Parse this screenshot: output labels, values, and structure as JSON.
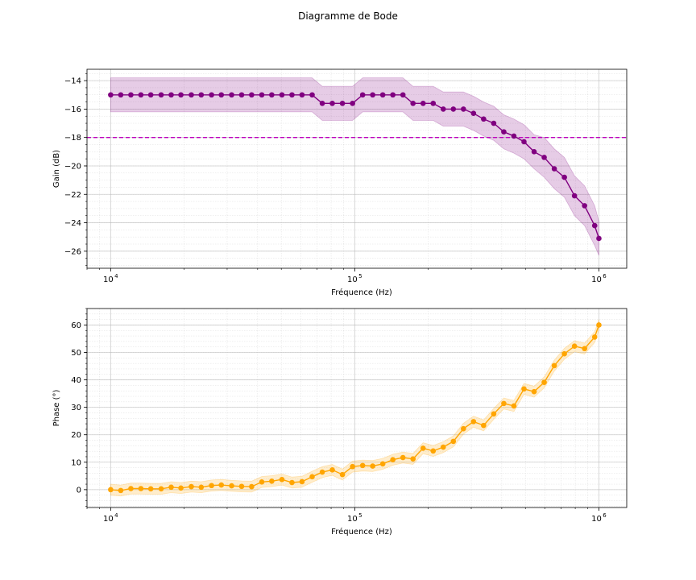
{
  "figure": {
    "title": "Diagramme de Bode"
  },
  "chart_data": [
    {
      "type": "line",
      "id": "gain",
      "title": "",
      "xlabel": "Fréquence (Hz)",
      "ylabel": "Gain (dB)",
      "xscale": "log",
      "xlim": [
        8000,
        1300000
      ],
      "ylim": [
        -27.2,
        -13.2
      ],
      "x_ticks": [
        10000,
        100000,
        1000000
      ],
      "x_tick_labels": [
        "10",
        "10",
        "10"
      ],
      "x_tick_exponents": [
        "4",
        "5",
        "6"
      ],
      "y_ticks": [
        -26,
        -24,
        -22,
        -20,
        -18,
        -16,
        -14
      ],
      "y_tick_labels": [
        "−26",
        "−24",
        "−22",
        "−20",
        "−18",
        "−16",
        "−14"
      ],
      "grid": true,
      "color": "#800080",
      "band_color": "#800080",
      "reference_line": {
        "y": -18,
        "color": "#bf00bf",
        "style": "dashed"
      },
      "x": [
        10000,
        11000,
        12100,
        13300,
        14600,
        16100,
        17700,
        19400,
        21400,
        23500,
        25900,
        28400,
        31300,
        34400,
        37800,
        41600,
        45700,
        50300,
        55300,
        60800,
        66900,
        73600,
        80900,
        89000,
        97900,
        107700,
        118400,
        130200,
        143200,
        157500,
        173200,
        190500,
        209500,
        230400,
        253400,
        278700,
        306500,
        337100,
        370800,
        407800,
        448600,
        493400,
        542700,
        596900,
        656600,
        722200,
        794300,
        873700,
        961000,
        1000000
      ],
      "y": [
        -15.0,
        -15.0,
        -15.0,
        -15.0,
        -15.0,
        -15.0,
        -15.0,
        -15.0,
        -15.0,
        -15.0,
        -15.0,
        -15.0,
        -15.0,
        -15.0,
        -15.0,
        -15.0,
        -15.0,
        -15.0,
        -15.0,
        -15.0,
        -15.0,
        -15.6,
        -15.6,
        -15.6,
        -15.6,
        -15.0,
        -15.0,
        -15.0,
        -15.0,
        -15.0,
        -15.6,
        -15.6,
        -15.6,
        -16.0,
        -16.0,
        -16.0,
        -16.3,
        -16.7,
        -17.0,
        -17.6,
        -17.9,
        -18.3,
        -19.0,
        -19.4,
        -20.2,
        -20.8,
        -22.1,
        -22.8,
        -24.2,
        -25.1
      ],
      "y_lower": [
        -16.2,
        -16.2,
        -16.2,
        -16.2,
        -16.2,
        -16.2,
        -16.2,
        -16.2,
        -16.2,
        -16.2,
        -16.2,
        -16.2,
        -16.2,
        -16.2,
        -16.2,
        -16.2,
        -16.2,
        -16.2,
        -16.2,
        -16.2,
        -16.2,
        -16.8,
        -16.8,
        -16.8,
        -16.8,
        -16.2,
        -16.2,
        -16.2,
        -16.2,
        -16.2,
        -16.8,
        -16.8,
        -16.8,
        -17.2,
        -17.2,
        -17.2,
        -17.5,
        -17.9,
        -18.2,
        -18.8,
        -19.1,
        -19.5,
        -20.2,
        -20.8,
        -21.6,
        -22.2,
        -23.5,
        -24.2,
        -25.6,
        -26.3
      ],
      "y_upper": [
        -13.8,
        -13.8,
        -13.8,
        -13.8,
        -13.8,
        -13.8,
        -13.8,
        -13.8,
        -13.8,
        -13.8,
        -13.8,
        -13.8,
        -13.8,
        -13.8,
        -13.8,
        -13.8,
        -13.8,
        -13.8,
        -13.8,
        -13.8,
        -13.8,
        -14.4,
        -14.4,
        -14.4,
        -14.4,
        -13.8,
        -13.8,
        -13.8,
        -13.8,
        -13.8,
        -14.4,
        -14.4,
        -14.4,
        -14.8,
        -14.8,
        -14.8,
        -15.1,
        -15.5,
        -15.8,
        -16.4,
        -16.7,
        -17.1,
        -17.8,
        -18.0,
        -18.8,
        -19.4,
        -20.7,
        -21.4,
        -22.8,
        -23.9
      ]
    },
    {
      "type": "line",
      "id": "phase",
      "title": "",
      "xlabel": "Fréquence (Hz)",
      "ylabel": "Phase (°)",
      "xscale": "log",
      "xlim": [
        8000,
        1300000
      ],
      "ylim": [
        -6.5,
        66
      ],
      "x_ticks": [
        10000,
        100000,
        1000000
      ],
      "x_tick_labels": [
        "10",
        "10",
        "10"
      ],
      "x_tick_exponents": [
        "4",
        "5",
        "6"
      ],
      "y_ticks": [
        0,
        10,
        20,
        30,
        40,
        50,
        60
      ],
      "y_tick_labels": [
        "0",
        "10",
        "20",
        "30",
        "40",
        "50",
        "60"
      ],
      "grid": true,
      "color": "#ffa500",
      "band_color": "#ffa500",
      "x": [
        10000,
        11000,
        12100,
        13300,
        14600,
        16100,
        17700,
        19400,
        21400,
        23500,
        25900,
        28400,
        31300,
        34400,
        37800,
        41600,
        45700,
        50300,
        55300,
        60800,
        66900,
        73600,
        80900,
        89000,
        97900,
        107700,
        118400,
        130200,
        143200,
        157500,
        173200,
        190500,
        209500,
        230400,
        253400,
        278700,
        306500,
        337100,
        370800,
        407800,
        448600,
        493400,
        542700,
        596900,
        656600,
        722200,
        794300,
        873700,
        961000,
        1000000
      ],
      "y": [
        0.0,
        -0.3,
        0.4,
        0.4,
        0.3,
        0.3,
        0.9,
        0.6,
        1.1,
        0.9,
        1.5,
        1.7,
        1.4,
        1.2,
        1.1,
        2.8,
        3.1,
        3.7,
        2.6,
        2.9,
        4.7,
        6.4,
        7.2,
        5.5,
        8.4,
        8.8,
        8.6,
        9.4,
        10.9,
        11.7,
        11.2,
        15.1,
        14.1,
        15.5,
        17.6,
        22.2,
        24.8,
        23.4,
        27.6,
        31.4,
        30.5,
        36.7,
        35.7,
        39.1,
        45.2,
        49.5,
        52.3,
        51.4,
        55.6,
        60.0
      ],
      "y_lower": [
        -2.0,
        -2.3,
        -1.6,
        -1.6,
        -1.7,
        -1.7,
        -1.1,
        -1.4,
        -0.9,
        -1.1,
        -0.5,
        -0.3,
        -0.6,
        -0.8,
        -0.9,
        0.8,
        1.1,
        1.7,
        0.6,
        0.9,
        2.7,
        4.4,
        5.2,
        3.5,
        6.4,
        6.8,
        6.6,
        7.4,
        8.9,
        9.7,
        9.2,
        13.1,
        12.1,
        13.5,
        15.6,
        20.2,
        22.8,
        21.4,
        25.6,
        29.4,
        28.5,
        34.7,
        33.7,
        37.1,
        43.2,
        47.5,
        50.3,
        49.4,
        53.6,
        58.0
      ],
      "y_upper": [
        2.0,
        1.7,
        2.4,
        2.4,
        2.3,
        2.3,
        2.9,
        2.6,
        3.1,
        2.9,
        3.5,
        3.7,
        3.4,
        3.2,
        3.1,
        4.8,
        5.1,
        5.7,
        4.6,
        4.9,
        6.7,
        8.4,
        9.2,
        7.5,
        10.4,
        10.8,
        10.6,
        11.4,
        12.9,
        13.7,
        13.2,
        17.1,
        16.1,
        17.5,
        19.6,
        24.2,
        26.8,
        25.4,
        29.6,
        33.4,
        32.5,
        38.7,
        37.7,
        41.1,
        47.2,
        51.5,
        54.3,
        53.4,
        57.6,
        62.0
      ]
    }
  ]
}
